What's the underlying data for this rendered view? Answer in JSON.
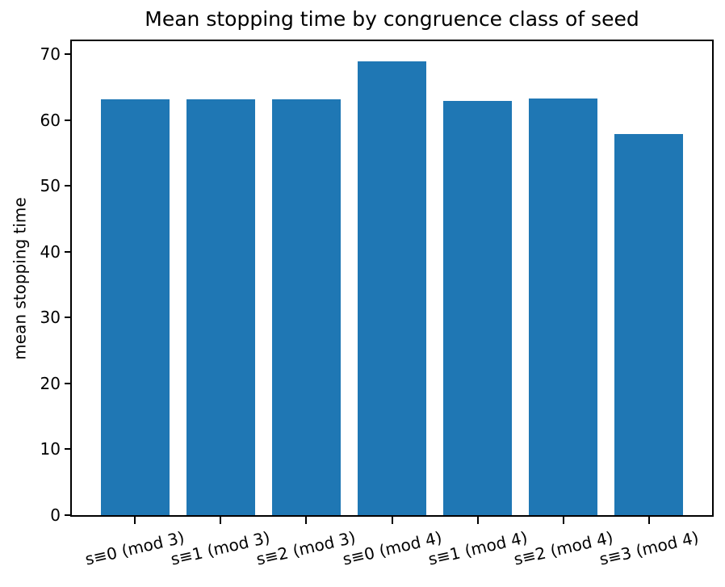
{
  "chart_data": {
    "type": "bar",
    "title": "Mean stopping time by congruence class of seed",
    "xlabel": "",
    "ylabel": "mean stopping time",
    "categories": [
      "s≡0 (mod 3)",
      "s≡1 (mod 3)",
      "s≡2 (mod 3)",
      "s≡0 (mod 4)",
      "s≡1 (mod 4)",
      "s≡2 (mod 4)",
      "s≡3 (mod 4)"
    ],
    "values": [
      63.2,
      63.2,
      63.2,
      68.9,
      62.9,
      63.3,
      57.9
    ],
    "yticks": [
      0,
      10,
      20,
      30,
      40,
      50,
      60,
      70
    ],
    "ylim": [
      0,
      72.0
    ],
    "xlim": [
      -0.74,
      6.74
    ],
    "bar_width": 0.8,
    "bar_color": "#1f77b4",
    "axis_color": "#000000",
    "background_color": "#ffffff",
    "x_tick_label_rotation_deg": 13,
    "grid": false,
    "legend": null
  }
}
